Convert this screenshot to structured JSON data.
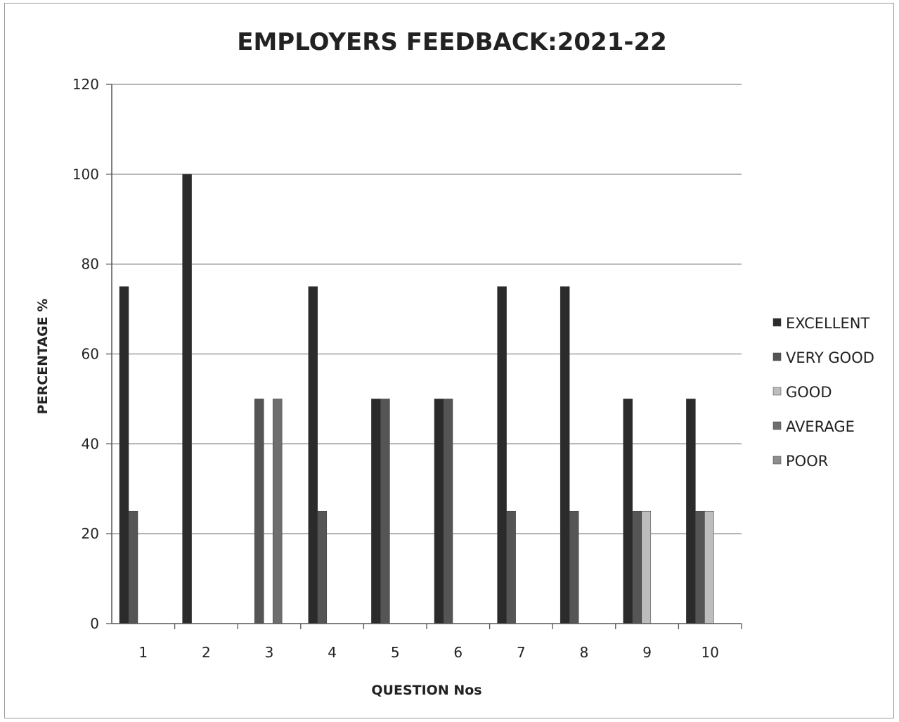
{
  "chart_data": {
    "type": "bar",
    "title": "EMPLOYERS FEEDBACK:2021-22",
    "xlabel": "QUESTION Nos",
    "ylabel": "PERCENTAGE %",
    "ylim": [
      0,
      120
    ],
    "yticks": [
      "0",
      "20",
      "40",
      "60",
      "80",
      "100",
      "120"
    ],
    "categories": [
      "1",
      "2",
      "3",
      "4",
      "5",
      "6",
      "7",
      "8",
      "9",
      "10"
    ],
    "grid": true,
    "legend_position": "right",
    "series": [
      {
        "name": "EXCELLENT",
        "color": "#2b2b2b",
        "values": [
          75,
          100,
          0,
          75,
          50,
          50,
          75,
          75,
          50,
          50
        ]
      },
      {
        "name": "VERY GOOD",
        "color": "#555555",
        "values": [
          25,
          0,
          50,
          25,
          50,
          50,
          25,
          25,
          25,
          25
        ]
      },
      {
        "name": "GOOD",
        "color": "#bdbdbd",
        "values": [
          0,
          0,
          0,
          0,
          0,
          0,
          0,
          0,
          25,
          25
        ]
      },
      {
        "name": "AVERAGE",
        "color": "#6e6e6e",
        "values": [
          0,
          0,
          50,
          0,
          0,
          0,
          0,
          0,
          0,
          0
        ]
      },
      {
        "name": "POOR",
        "color": "#8e8e8e",
        "values": [
          0,
          0,
          0,
          0,
          0,
          0,
          0,
          0,
          0,
          0
        ]
      }
    ]
  }
}
